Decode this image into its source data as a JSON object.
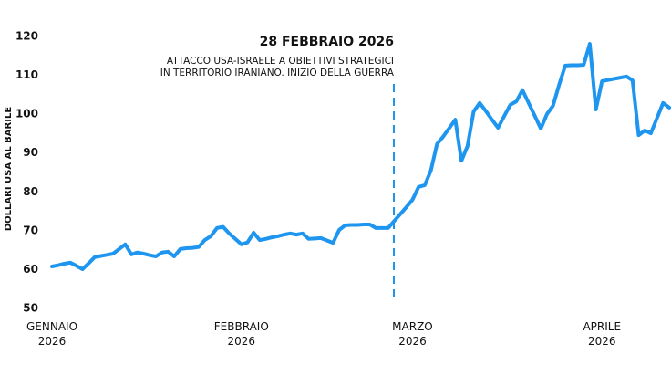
{
  "chart_data": {
    "type": "line",
    "y_label": "DOLLARI USA AL BARILE",
    "annotation": {
      "title": "28 FEBBRAIO 2026",
      "lines": [
        "ATTACCO USA-ISRAELE A OBIETTIVI STRATEGICI",
        "IN TERRITORIO IRANIANO. INIZIO DELLA GUERRA"
      ]
    },
    "categories": [
      "GENNAIO 2026",
      null,
      null,
      null,
      null,
      null,
      null,
      null,
      null,
      null,
      null,
      null,
      null,
      null,
      null,
      null,
      null,
      null,
      null,
      null,
      null,
      null,
      null,
      null,
      null,
      null,
      null,
      null,
      null,
      null,
      null,
      "FEBBRAIO 2026",
      null,
      null,
      null,
      null,
      null,
      null,
      null,
      null,
      null,
      null,
      null,
      null,
      null,
      null,
      null,
      null,
      null,
      null,
      null,
      null,
      null,
      null,
      null,
      null,
      null,
      null,
      null,
      "MARZO 2026",
      null,
      null,
      null,
      null,
      null,
      null,
      null,
      null,
      null,
      null,
      null,
      null,
      null,
      null,
      null,
      null,
      null,
      null,
      null,
      null,
      null,
      null,
      null,
      null,
      null,
      null,
      null,
      null,
      null,
      null,
      "APRILE 2026",
      null,
      null,
      null,
      null,
      null,
      null,
      null,
      null,
      null,
      null,
      null
    ],
    "values": [
      60.8,
      61.1,
      61.5,
      61.8,
      61.0,
      60.1,
      61.6,
      63.2,
      63.5,
      63.8,
      64.1,
      65.3,
      66.5,
      63.9,
      64.4,
      64.1,
      63.7,
      63.4,
      64.4,
      64.6,
      63.4,
      65.3,
      65.5,
      65.6,
      65.8,
      67.6,
      68.6,
      70.7,
      71.0,
      69.3,
      67.9,
      66.5,
      67.0,
      69.5,
      67.6,
      67.9,
      68.3,
      68.6,
      69.0,
      69.3,
      69.0,
      69.3,
      67.9,
      68.0,
      68.1,
      67.5,
      66.9,
      70.2,
      71.4,
      71.5,
      71.5,
      71.6,
      71.6,
      70.7,
      70.7,
      70.7,
      72.5,
      74.3,
      76.1,
      78.0,
      81.3,
      81.7,
      85.5,
      92.3,
      94.2,
      96.4,
      98.6,
      88.0,
      91.8,
      100.7,
      102.9,
      100.8,
      98.6,
      96.5,
      99.5,
      102.4,
      103.3,
      106.2,
      102.9,
      99.6,
      96.3,
      100.0,
      102.2,
      107.6,
      112.5,
      112.6,
      112.6,
      112.7,
      118.1,
      101.2,
      108.5,
      108.8,
      109.1,
      109.4,
      109.7,
      108.7,
      94.6,
      95.8,
      95.1,
      99.0,
      102.9,
      101.7
    ],
    "color": "#1e96f0",
    "ylim": [
      50,
      120
    ],
    "yticks": [
      50,
      60,
      70,
      80,
      90,
      100,
      110,
      120
    ],
    "grid": false
  }
}
